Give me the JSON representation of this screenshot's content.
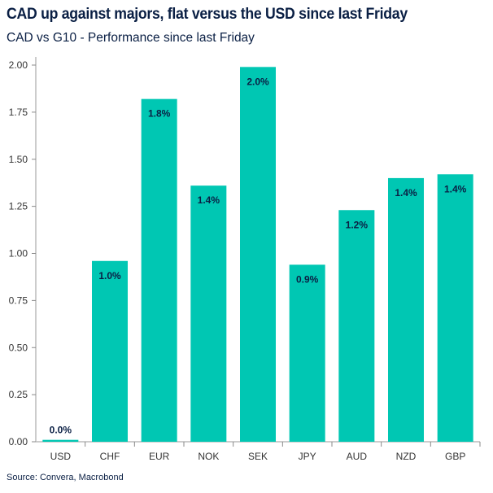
{
  "title": "CAD up against majors, flat versus the USD since last Friday",
  "subtitle": "CAD vs G10 - Performance since last Friday",
  "source": "Source: Convera, Macrobond",
  "colors": {
    "bar": "#00c7b3",
    "text": "#0a1f44",
    "axis": "#bbbbbb"
  },
  "chart_data": {
    "type": "bar",
    "title": "CAD up against majors, flat versus the USD since last Friday",
    "subtitle": "CAD vs G10 - Performance since last Friday",
    "xlabel": "",
    "ylabel": "",
    "categories": [
      "USD",
      "CHF",
      "EUR",
      "NOK",
      "SEK",
      "JPY",
      "AUD",
      "NZD",
      "GBP"
    ],
    "values": [
      0.01,
      0.96,
      1.82,
      1.36,
      1.99,
      0.94,
      1.23,
      1.4,
      1.42
    ],
    "data_labels": [
      "0.0%",
      "1.0%",
      "1.8%",
      "1.4%",
      "2.0%",
      "0.9%",
      "1.2%",
      "1.4%",
      "1.4%"
    ],
    "ylim": [
      0,
      2.0
    ],
    "yticks": [
      "0.00",
      "0.25",
      "0.50",
      "0.75",
      "1.00",
      "1.25",
      "1.50",
      "1.75",
      "2.00"
    ],
    "grid": false,
    "legend": "none"
  }
}
